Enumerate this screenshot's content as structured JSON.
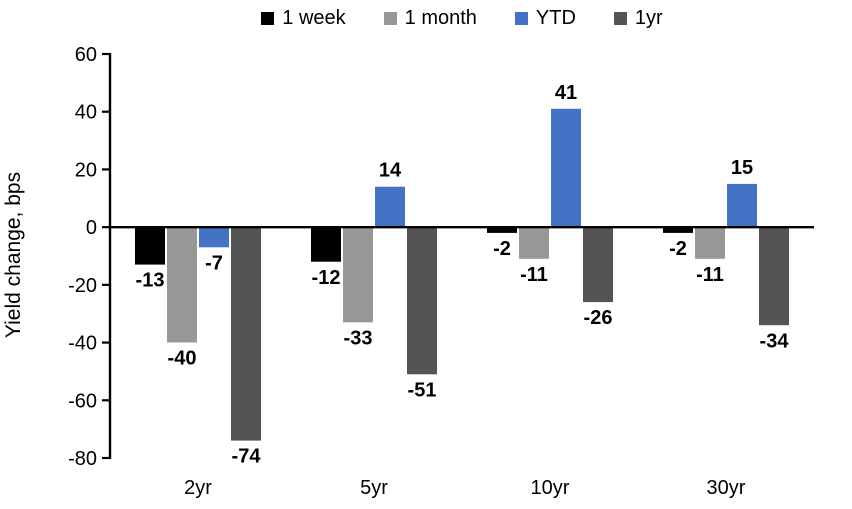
{
  "chart_data": {
    "type": "bar",
    "categories": [
      "2yr",
      "5yr",
      "10yr",
      "30yr"
    ],
    "series": [
      {
        "name": "1 week",
        "color": "#000000",
        "values": [
          -13,
          -12,
          -2,
          -2
        ]
      },
      {
        "name": "1 month",
        "color": "#989898",
        "values": [
          -40,
          -33,
          -11,
          -11
        ]
      },
      {
        "name": "YTD",
        "color": "#4472C4",
        "values": [
          -7,
          14,
          41,
          15
        ]
      },
      {
        "name": "1yr",
        "color": "#545454",
        "values": [
          -74,
          -51,
          -26,
          -34
        ]
      }
    ],
    "ylabel": "Yield change, bps",
    "ylim": [
      -80,
      60
    ],
    "ytick_step": 20,
    "grid": false,
    "legend_position": "top",
    "data_labels": true,
    "axis_color": "#000000"
  }
}
